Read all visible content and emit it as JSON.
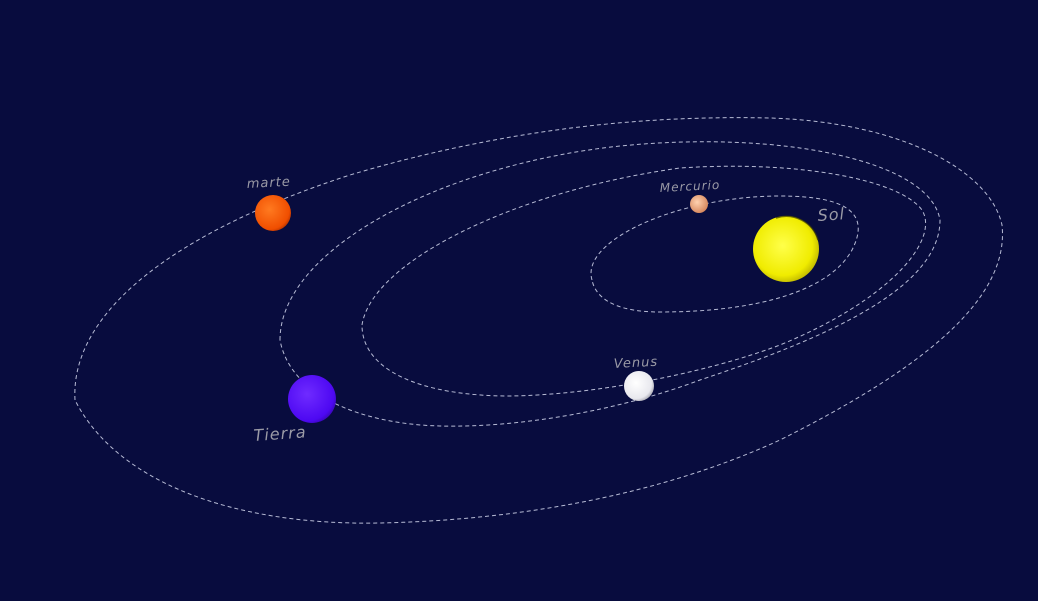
{
  "bodies": {
    "sun": {
      "label": "Sol",
      "color": "#f5f000"
    },
    "mercury": {
      "label": "Mercurio",
      "color": "#e8a27a"
    },
    "venus": {
      "label": "Venus",
      "color": "#ffffff"
    },
    "earth": {
      "label": "Tierra",
      "color": "#5a10ff"
    },
    "mars": {
      "label": "marte",
      "color": "#ff5a00"
    }
  },
  "colors": {
    "background": "#080c3e",
    "orbit": "#d6daf0",
    "label": "#9a9aa6"
  }
}
